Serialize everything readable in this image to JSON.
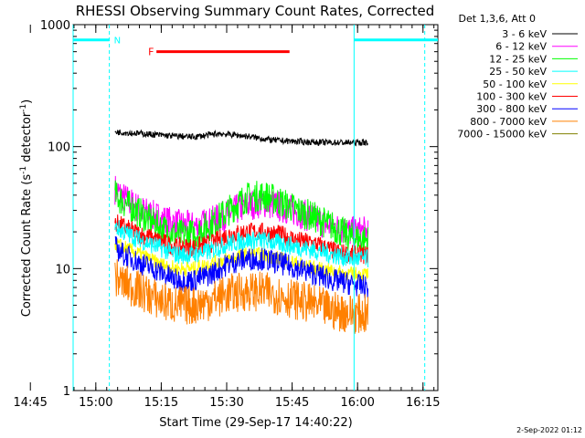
{
  "chart_data": {
    "type": "line",
    "title": "RHESSI Observing Summary Count Rates, Corrected",
    "xlabel": "Start Time (29-Sep-17 14:40:22)",
    "ylabel_parts": [
      "Corrected Count Rate (s",
      "-1",
      " detector",
      "-1",
      ")"
    ],
    "y_scale": "log",
    "ylim": [
      1,
      1000
    ],
    "y_ticks": [
      {
        "value": 1,
        "label": "1"
      },
      {
        "value": 10,
        "label": "10"
      },
      {
        "value": 100,
        "label": "100"
      },
      {
        "value": 1000,
        "label": "1000"
      }
    ],
    "x_range_minutes": [
      14.4,
      98.0
    ],
    "x_ticks": [
      {
        "label": "14:45",
        "t": 4.6
      },
      {
        "label": "15:00",
        "t": 19.6
      },
      {
        "label": "15:15",
        "t": 34.6
      },
      {
        "label": "15:30",
        "t": 49.6
      },
      {
        "label": "15:45",
        "t": 64.6
      },
      {
        "label": "16:00",
        "t": 79.6
      },
      {
        "label": "16:15",
        "t": 94.6
      }
    ],
    "legend_header": "Det 1,3,6, Att 0",
    "legend_position": "right-outside",
    "series": [
      {
        "name": "3 - 6 keV",
        "color": "#000000",
        "points": [
          [
            24.0,
            132
          ],
          [
            30,
            128
          ],
          [
            36,
            123
          ],
          [
            42,
            120
          ],
          [
            48,
            128
          ],
          [
            54,
            122
          ],
          [
            60,
            113
          ],
          [
            66,
            110
          ],
          [
            72,
            108
          ],
          [
            79,
            108
          ],
          [
            82,
            108
          ]
        ]
      },
      {
        "name": "6 - 12 keV",
        "color": "#ff00ff",
        "points": [
          [
            24.0,
            45
          ],
          [
            26,
            38
          ],
          [
            30,
            30
          ],
          [
            34,
            26
          ],
          [
            38,
            23
          ],
          [
            42,
            22
          ],
          [
            46,
            24
          ],
          [
            50,
            28
          ],
          [
            54,
            33
          ],
          [
            58,
            35
          ],
          [
            62,
            32
          ],
          [
            66,
            29
          ],
          [
            70,
            25
          ],
          [
            74,
            22
          ],
          [
            78,
            20
          ],
          [
            82,
            20
          ]
        ]
      },
      {
        "name": "12 - 25 keV",
        "color": "#00ff00",
        "points": [
          [
            24.0,
            40
          ],
          [
            26,
            35
          ],
          [
            30,
            28
          ],
          [
            34,
            22
          ],
          [
            38,
            19
          ],
          [
            42,
            19
          ],
          [
            46,
            23
          ],
          [
            50,
            30
          ],
          [
            54,
            38
          ],
          [
            58,
            40
          ],
          [
            62,
            35
          ],
          [
            66,
            30
          ],
          [
            70,
            26
          ],
          [
            74,
            22
          ],
          [
            78,
            18
          ],
          [
            82,
            17
          ]
        ]
      },
      {
        "name": "25 - 50 keV",
        "color": "#00ffff",
        "points": [
          [
            24.0,
            22
          ],
          [
            26,
            20
          ],
          [
            30,
            17
          ],
          [
            34,
            15
          ],
          [
            38,
            13
          ],
          [
            42,
            13
          ],
          [
            46,
            14
          ],
          [
            50,
            16
          ],
          [
            54,
            17
          ],
          [
            58,
            17
          ],
          [
            62,
            16
          ],
          [
            66,
            15
          ],
          [
            70,
            14
          ],
          [
            74,
            13
          ],
          [
            78,
            12
          ],
          [
            82,
            12
          ]
        ]
      },
      {
        "name": "50 - 100 keV",
        "color": "#ffff00",
        "points": [
          [
            24.0,
            16
          ],
          [
            26,
            15
          ],
          [
            30,
            13
          ],
          [
            34,
            11
          ],
          [
            38,
            10
          ],
          [
            42,
            10
          ],
          [
            46,
            11
          ],
          [
            50,
            12
          ],
          [
            54,
            13
          ],
          [
            58,
            13
          ],
          [
            62,
            12
          ],
          [
            66,
            11
          ],
          [
            70,
            10
          ],
          [
            74,
            9.5
          ],
          [
            78,
            9
          ],
          [
            82,
            9
          ]
        ]
      },
      {
        "name": "100 - 300 keV",
        "color": "#ff0000",
        "points": [
          [
            24.0,
            24
          ],
          [
            26,
            22
          ],
          [
            30,
            19
          ],
          [
            34,
            17
          ],
          [
            38,
            15
          ],
          [
            42,
            15
          ],
          [
            46,
            16
          ],
          [
            50,
            19
          ],
          [
            54,
            20
          ],
          [
            58,
            20
          ],
          [
            62,
            19
          ],
          [
            66,
            17
          ],
          [
            70,
            16
          ],
          [
            74,
            14
          ],
          [
            78,
            13
          ],
          [
            82,
            13
          ]
        ]
      },
      {
        "name": "300 - 800 keV",
        "color": "#0000ff",
        "points": [
          [
            24.0,
            15
          ],
          [
            26,
            13
          ],
          [
            30,
            11
          ],
          [
            34,
            9.5
          ],
          [
            38,
            8
          ],
          [
            42,
            8
          ],
          [
            46,
            9
          ],
          [
            50,
            11
          ],
          [
            54,
            12
          ],
          [
            58,
            12
          ],
          [
            62,
            11
          ],
          [
            66,
            10
          ],
          [
            70,
            9
          ],
          [
            74,
            8
          ],
          [
            78,
            7.5
          ],
          [
            82,
            7
          ]
        ]
      },
      {
        "name": "800 - 7000 keV",
        "color": "#ff8000",
        "points": [
          [
            24.0,
            8.5
          ],
          [
            26,
            7.5
          ],
          [
            30,
            6.5
          ],
          [
            34,
            5.5
          ],
          [
            38,
            5
          ],
          [
            42,
            5
          ],
          [
            46,
            5.5
          ],
          [
            50,
            6.2
          ],
          [
            54,
            6.5
          ],
          [
            58,
            6.5
          ],
          [
            62,
            6
          ],
          [
            66,
            5.5
          ],
          [
            70,
            5
          ],
          [
            74,
            4.5
          ],
          [
            78,
            4.3
          ],
          [
            82,
            4.2
          ]
        ]
      },
      {
        "name": "7000 - 15000 keV",
        "color": "#808000",
        "points": []
      }
    ],
    "attenuator_bars": [
      {
        "label": "N",
        "label_color": "#00ffff",
        "color": "#00ffff",
        "t_start": 14.4,
        "t_end": 22.7,
        "value": 750
      },
      {
        "color": "#00ffff",
        "t_start": 78.8,
        "t_end": 98.0,
        "value": 750
      }
    ],
    "flare_bar": {
      "label": "F",
      "color": "#ff0000",
      "t_start": 33.5,
      "t_end": 64.0,
      "value": 600
    },
    "vertical_lines": [
      {
        "t": 14.4,
        "color": "#00ffff",
        "style": "solid"
      },
      {
        "t": 22.7,
        "color": "#00ffff",
        "style": "dashed"
      },
      {
        "t": 78.8,
        "color": "#00ffff",
        "style": "solid"
      },
      {
        "t": 95.0,
        "color": "#00ffff",
        "style": "dashed"
      }
    ]
  },
  "footer": {
    "timestamp": "2-Sep-2022 01:12"
  }
}
